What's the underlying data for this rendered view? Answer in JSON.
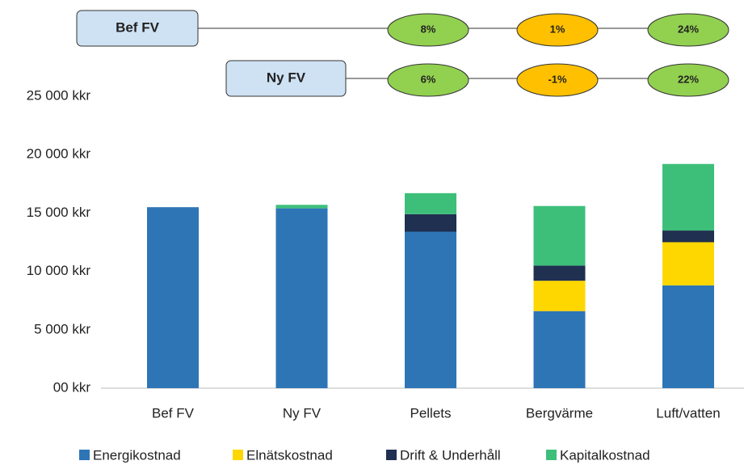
{
  "chart_data": {
    "type": "stacked_bar",
    "categories": [
      "Bef FV",
      "Ny FV",
      "Pellets",
      "Bergvärme",
      "Luft/vatten"
    ],
    "series": [
      {
        "name": "Energikostnad",
        "color": "#2e75b6",
        "values": [
          15500,
          15400,
          13400,
          6600,
          8800
        ]
      },
      {
        "name": "Elnätskostnad",
        "color": "#ffd700",
        "values": [
          0,
          0,
          0,
          2600,
          3700
        ]
      },
      {
        "name": "Drift & Underhåll",
        "color": "#1f3050",
        "values": [
          0,
          0,
          1500,
          1300,
          1000
        ]
      },
      {
        "name": "Kapitalkostnad",
        "color": "#3dbf7a",
        "values": [
          0,
          300,
          1800,
          5100,
          5700
        ]
      }
    ],
    "ylim": [
      0,
      25000
    ],
    "yticks": [
      {
        "value": 0,
        "label": "00 kkr"
      },
      {
        "value": 5000,
        "label": "5 000 kkr"
      },
      {
        "value": 10000,
        "label": "10 000 kkr"
      },
      {
        "value": 15000,
        "label": "15 000 kkr"
      },
      {
        "value": 20000,
        "label": "20 000 kkr"
      },
      {
        "value": 25000,
        "label": "25 000 kkr"
      }
    ],
    "legend": "bottom",
    "annotations": [
      {
        "label": "Bef FV",
        "values": [
          8,
          1,
          24
        ],
        "value_labels": [
          "8%",
          "1%",
          "24%"
        ],
        "colors": [
          "#92d050",
          "#ffc000",
          "#92d050"
        ]
      },
      {
        "label": "Ny FV",
        "values": [
          6,
          -1,
          22
        ],
        "value_labels": [
          "6%",
          "-1%",
          "22%"
        ],
        "colors": [
          "#92d050",
          "#ffc000",
          "#92d050"
        ]
      }
    ]
  }
}
